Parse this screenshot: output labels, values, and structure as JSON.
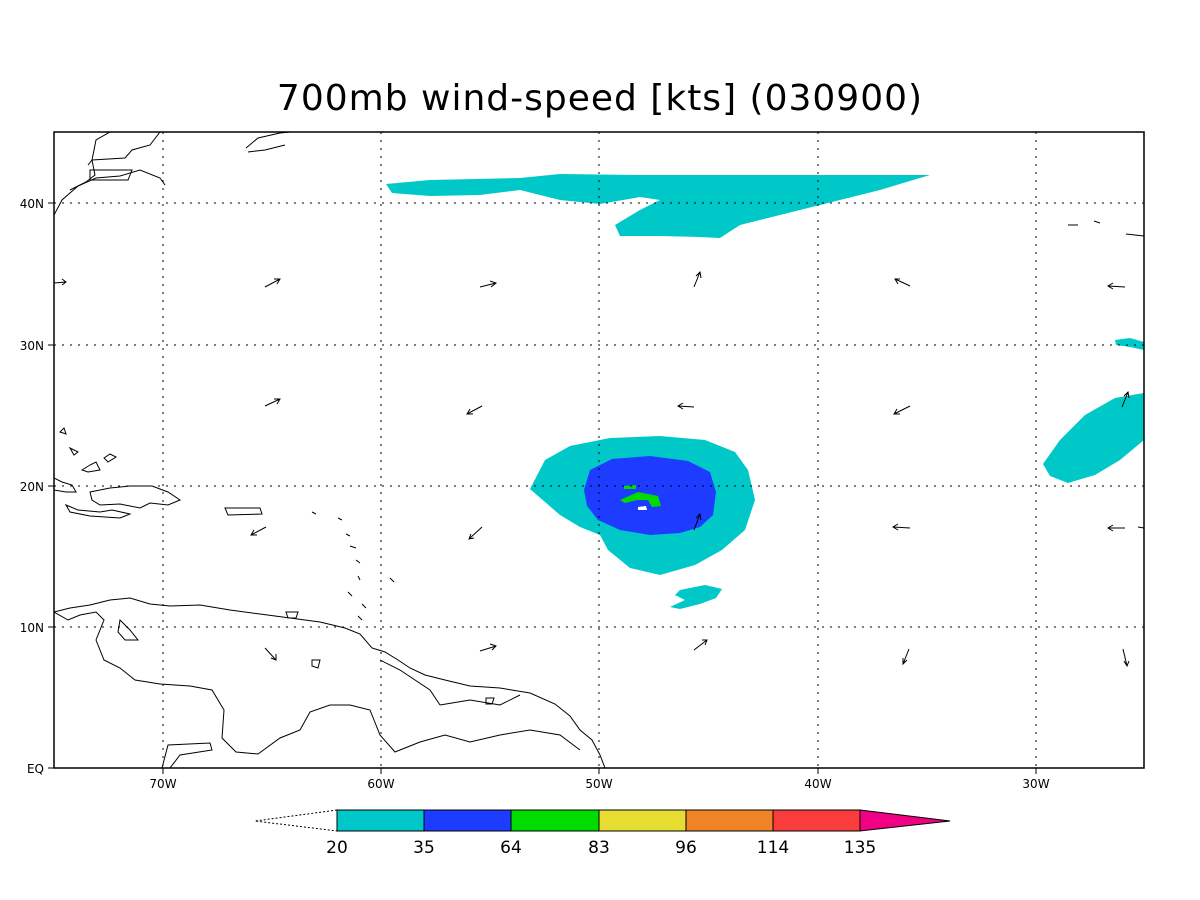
{
  "title": "700mb wind-speed [kts] (030900)",
  "lon_labels": [
    "70W",
    "60W",
    "50W",
    "40W",
    "30W"
  ],
  "lat_labels": [
    "40N",
    "30N",
    "20N",
    "10N",
    "EQ"
  ],
  "legend": {
    "labels": [
      "20",
      "35",
      "64",
      "83",
      "96",
      "114",
      "135"
    ],
    "colors": [
      "#00c8c8",
      "#1e3cff",
      "#00dc00",
      "#e6dc32",
      "#f08228",
      "#fa3c3c",
      "#f00082"
    ]
  },
  "map_extent": {
    "lon": [
      -75,
      -25
    ],
    "lat": [
      0,
      45
    ]
  },
  "vector_arrows": "wind direction arrows on a regular grid"
}
